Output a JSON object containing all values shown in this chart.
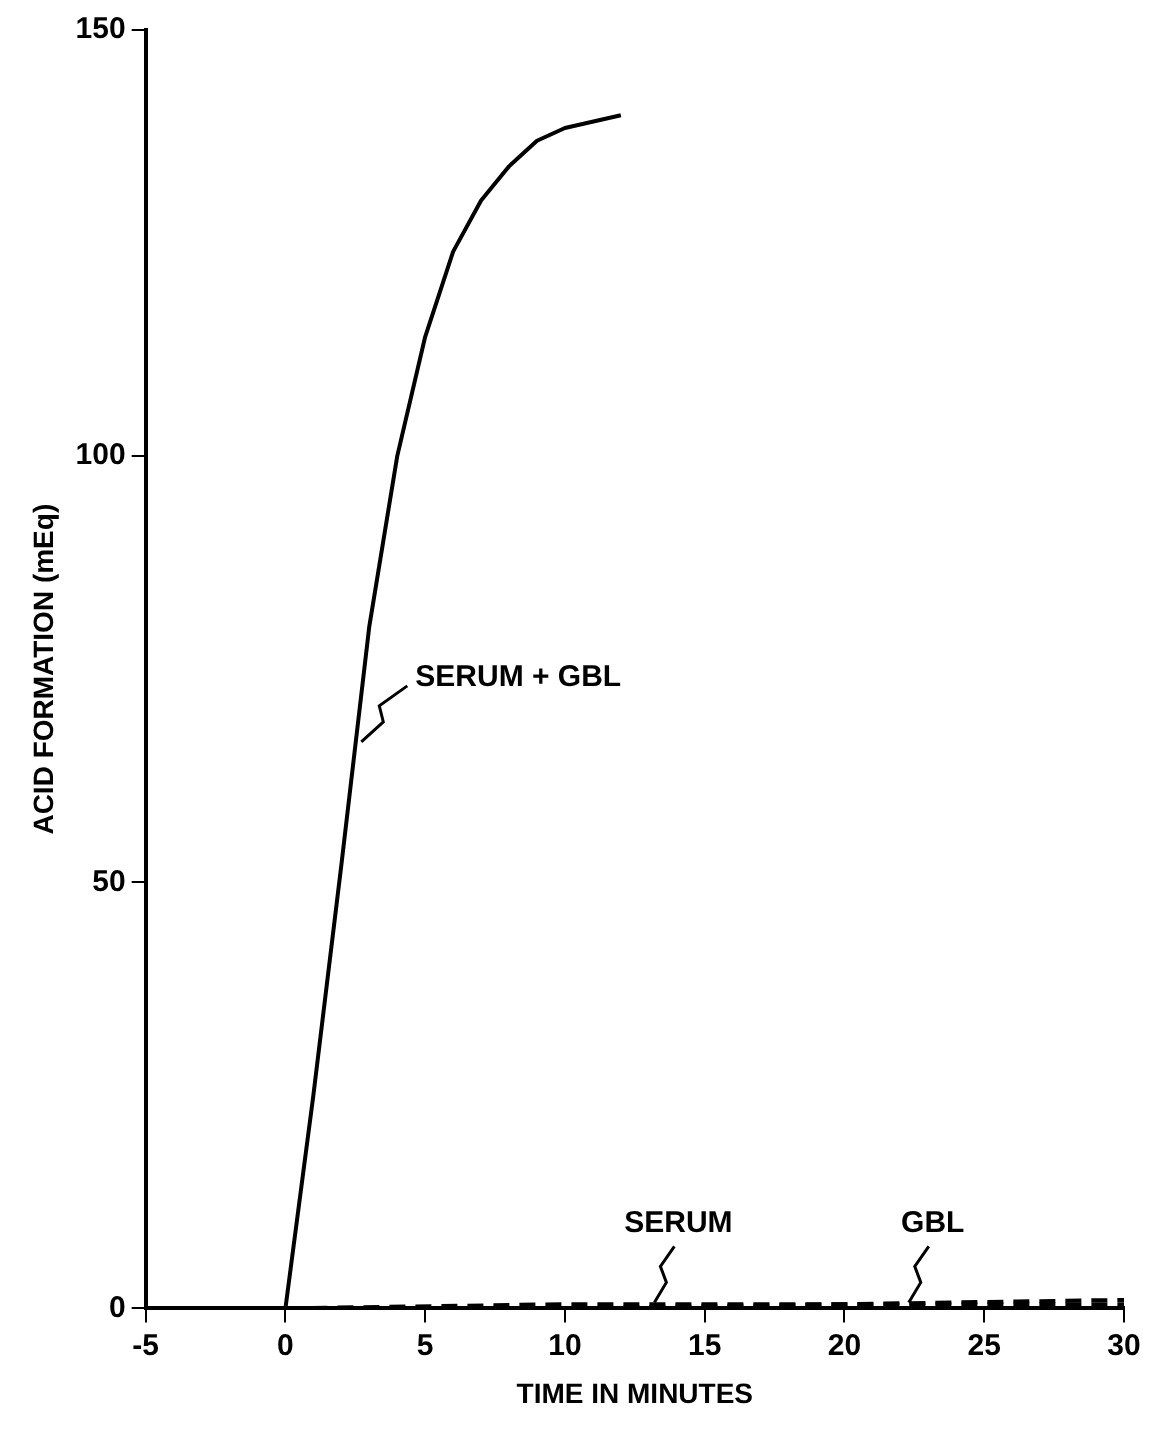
{
  "chart_data": {
    "type": "line",
    "xlabel": "TIME IN MINUTES",
    "ylabel": "ACID FORMATION (mEq)",
    "xlim": [
      -5,
      30
    ],
    "xticks": [
      -5,
      0,
      5,
      10,
      15,
      20,
      25,
      30
    ],
    "ylim": [
      0,
      150
    ],
    "yticks": [
      0,
      50,
      100,
      150
    ],
    "grid": false,
    "legend": false,
    "marker": "none",
    "series": [
      {
        "name": "SERUM + GBL",
        "color": "#000000",
        "line_style": "solid",
        "x": [
          -3.5,
          0,
          1,
          2,
          3,
          4,
          5,
          6,
          7,
          8,
          9,
          10,
          12
        ],
        "values": [
          0,
          0,
          25,
          52,
          80,
          100,
          114,
          124,
          130,
          134,
          137,
          138.5,
          140
        ]
      },
      {
        "name": "SERUM",
        "color": "#000000",
        "line_style": "dashed",
        "x": [
          0,
          10,
          20,
          30
        ],
        "values": [
          0,
          0,
          0.5,
          1
        ]
      },
      {
        "name": "GBL",
        "color": "#000000",
        "line_style": "dashed",
        "x": [
          0,
          10,
          20,
          30
        ],
        "values": [
          0,
          0.5,
          0.5,
          0.5
        ]
      }
    ]
  }
}
